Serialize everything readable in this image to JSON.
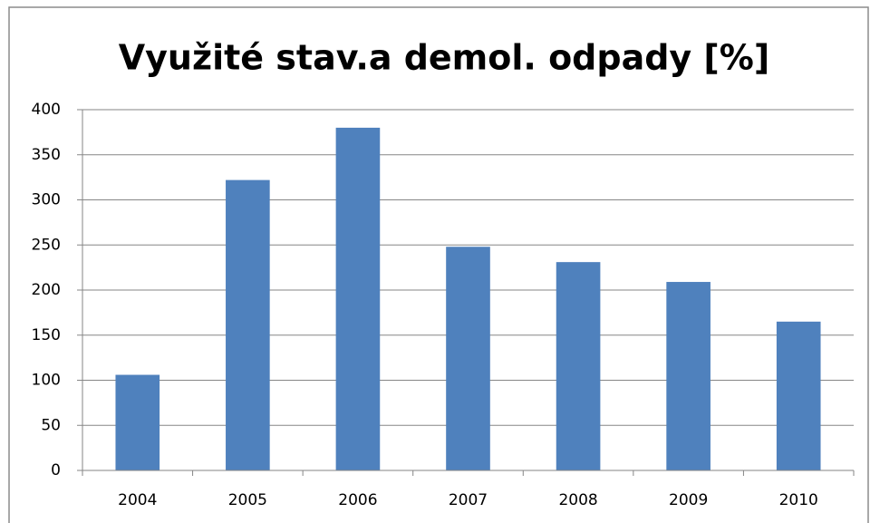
{
  "chart_data": {
    "type": "bar",
    "title": "Využité stav.a demol. odpady [%]",
    "categories": [
      "2004",
      "2005",
      "2006",
      "2007",
      "2008",
      "2009",
      "2010"
    ],
    "values": [
      106,
      322,
      380,
      248,
      231,
      209,
      165
    ],
    "color": "#4f81bd",
    "ylim": [
      0,
      400
    ],
    "yticks": [
      0,
      50,
      100,
      150,
      200,
      250,
      300,
      350,
      400
    ],
    "grid": true
  }
}
